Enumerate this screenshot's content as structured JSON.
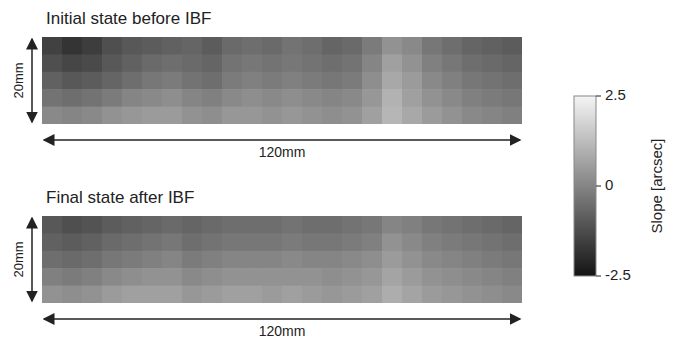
{
  "chart_data": [
    {
      "type": "heatmap",
      "title": "Initial state before IBF",
      "x_label": "120mm",
      "y_label": "20mm",
      "tick_labels": false,
      "cells": [
        [
          -1.5,
          -1.8,
          -1.6,
          -1.2,
          -1.0,
          -0.9,
          -0.8,
          -0.7,
          -0.9,
          -0.6,
          -0.5,
          -0.6,
          -0.4,
          -0.5,
          -0.7,
          -0.6,
          -0.2,
          0.3,
          0.1,
          -0.3,
          -0.5,
          -0.7,
          -0.8,
          -0.9
        ],
        [
          -1.2,
          -1.4,
          -1.3,
          -1.0,
          -0.8,
          -0.6,
          -0.5,
          -0.6,
          -0.7,
          -0.4,
          -0.3,
          -0.4,
          -0.3,
          -0.4,
          -0.5,
          -0.4,
          0.0,
          0.6,
          0.3,
          -0.1,
          -0.3,
          -0.5,
          -0.6,
          -0.7
        ],
        [
          -0.8,
          -1.0,
          -0.9,
          -0.7,
          -0.5,
          -0.3,
          -0.2,
          -0.4,
          -0.5,
          -0.2,
          -0.1,
          -0.2,
          -0.1,
          -0.2,
          -0.3,
          -0.2,
          0.2,
          0.8,
          0.5,
          0.1,
          -0.1,
          -0.3,
          -0.4,
          -0.5
        ],
        [
          -0.4,
          -0.5,
          -0.4,
          -0.2,
          0.0,
          0.1,
          0.2,
          0.0,
          -0.1,
          0.1,
          0.2,
          0.1,
          0.2,
          0.1,
          0.0,
          0.1,
          0.4,
          1.0,
          0.6,
          0.3,
          0.1,
          -0.1,
          -0.2,
          -0.3
        ],
        [
          0.1,
          0.0,
          0.1,
          0.3,
          0.4,
          0.5,
          0.5,
          0.3,
          0.2,
          0.4,
          0.4,
          0.3,
          0.4,
          0.3,
          0.2,
          0.3,
          0.6,
          1.1,
          0.8,
          0.5,
          0.3,
          0.1,
          0.0,
          -0.1
        ]
      ]
    },
    {
      "type": "heatmap",
      "title": "Final state after IBF",
      "x_label": "120mm",
      "y_label": "20mm",
      "tick_labels": false,
      "cells": [
        [
          -1.0,
          -1.2,
          -1.1,
          -0.9,
          -0.8,
          -0.7,
          -0.6,
          -0.7,
          -0.6,
          -0.5,
          -0.5,
          -0.5,
          -0.4,
          -0.5,
          -0.5,
          -0.4,
          -0.3,
          0.0,
          -0.1,
          -0.3,
          -0.4,
          -0.5,
          -0.6,
          -0.7
        ],
        [
          -0.8,
          -0.9,
          -0.8,
          -0.6,
          -0.5,
          -0.4,
          -0.3,
          -0.5,
          -0.4,
          -0.3,
          -0.3,
          -0.3,
          -0.2,
          -0.3,
          -0.3,
          -0.2,
          -0.1,
          0.3,
          0.1,
          -0.1,
          -0.2,
          -0.3,
          -0.4,
          -0.5
        ],
        [
          -0.5,
          -0.6,
          -0.5,
          -0.3,
          -0.2,
          -0.1,
          0.0,
          -0.2,
          -0.1,
          0.0,
          0.0,
          0.0,
          0.1,
          0.0,
          0.0,
          0.1,
          0.2,
          0.5,
          0.3,
          0.1,
          0.0,
          -0.1,
          -0.2,
          -0.3
        ],
        [
          -0.1,
          -0.2,
          -0.1,
          0.1,
          0.2,
          0.3,
          0.3,
          0.1,
          0.2,
          0.3,
          0.3,
          0.3,
          0.3,
          0.3,
          0.2,
          0.3,
          0.4,
          0.7,
          0.5,
          0.3,
          0.2,
          0.1,
          0.0,
          -0.1
        ],
        [
          0.3,
          0.2,
          0.3,
          0.5,
          0.6,
          0.6,
          0.6,
          0.4,
          0.5,
          0.6,
          0.6,
          0.5,
          0.6,
          0.5,
          0.4,
          0.5,
          0.6,
          0.9,
          0.7,
          0.5,
          0.4,
          0.3,
          0.2,
          0.1
        ]
      ]
    }
  ],
  "colorbar": {
    "label": "Slope [arcsec]",
    "range": [
      -2.5,
      2.5
    ],
    "ticks": [
      2.5,
      0,
      -2.5
    ]
  }
}
